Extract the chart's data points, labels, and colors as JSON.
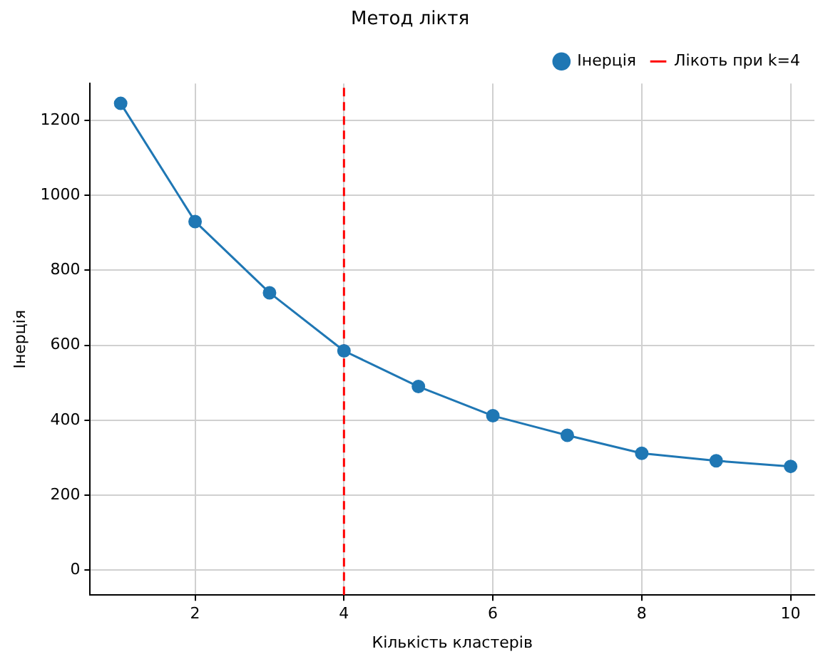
{
  "chart_data": {
    "type": "line",
    "title": "Метод ліктя",
    "xlabel": "Кількість кластерів",
    "ylabel": "Інерція",
    "x": [
      1,
      2,
      3,
      4,
      5,
      6,
      7,
      8,
      9,
      10
    ],
    "series": [
      {
        "name": "Інерція",
        "color": "#1f77b4",
        "values": [
          1245,
          930,
          740,
          585,
          490,
          412,
          360,
          312,
          292,
          277
        ]
      }
    ],
    "xlim": [
      0.59,
      10.32
    ],
    "xticks": [
      2,
      4,
      6,
      8,
      10
    ],
    "ylim": [
      -66,
      1298
    ],
    "yticks": [
      0,
      200,
      400,
      600,
      800,
      1000,
      1200
    ],
    "ref_lines": [
      {
        "axis": "x",
        "value": 4,
        "label": "Лікоть при k=4",
        "color": "#ff0000",
        "line_style": "dashed"
      }
    ],
    "grid": true,
    "legend": "top right",
    "marker": "circle",
    "line_style": "solid"
  }
}
